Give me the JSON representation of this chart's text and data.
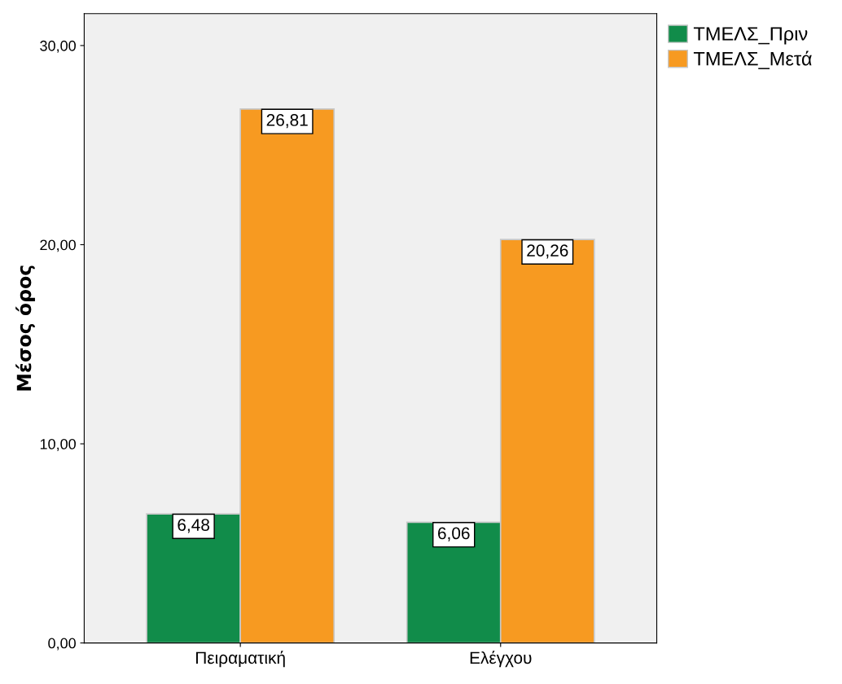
{
  "chart_data": {
    "type": "bar",
    "ylabel": "Μέσος όρος",
    "categories": [
      "Πειραματική",
      "Ελέγχου"
    ],
    "series": [
      {
        "name": "ΤΜΕΛΣ_Πριν",
        "color": "#118c4a",
        "values": [
          6.48,
          6.06
        ],
        "value_labels": [
          "6,48",
          "6,06"
        ]
      },
      {
        "name": "ΤΜΕΛΣ_Μετά",
        "color": "#f79a21",
        "values": [
          26.81,
          20.26
        ],
        "value_labels": [
          "26,81",
          "20,26"
        ]
      }
    ],
    "ylim": [
      0,
      31.6
    ],
    "yticks": [
      {
        "value": 0,
        "label": "0,00"
      },
      {
        "value": 10,
        "label": "10,00"
      },
      {
        "value": 20,
        "label": "20,00"
      },
      {
        "value": 30,
        "label": "30,00"
      }
    ],
    "grid": false,
    "legend": "top right"
  }
}
